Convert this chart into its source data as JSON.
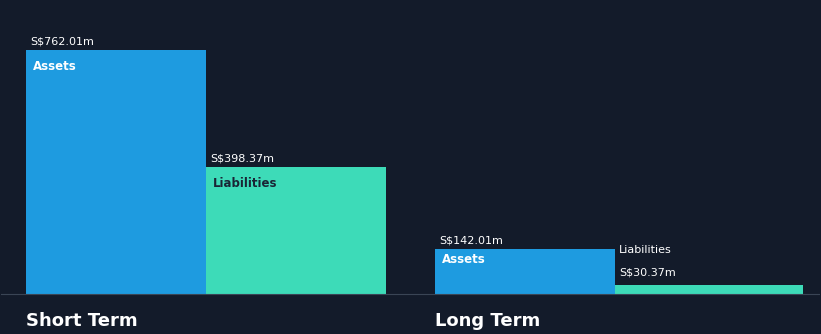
{
  "background_color": "#131b2a",
  "short_term": {
    "assets_value": 762.01,
    "liabilities_value": 398.37,
    "assets_label": "Assets",
    "liabilities_label": "Liabilities",
    "assets_value_label": "S$762.01m",
    "liabilities_value_label": "S$398.37m",
    "section_label": "Short Term"
  },
  "long_term": {
    "assets_value": 142.01,
    "liabilities_value": 30.37,
    "assets_label": "Assets",
    "liabilities_label": "Liabilities",
    "assets_value_label": "S$142.01m",
    "liabilities_value_label": "S$30.37m",
    "section_label": "Long Term"
  },
  "assets_color": "#1e9be0",
  "liabilities_color": "#3ddbb8",
  "text_color": "#ffffff",
  "dark_text_color": "#1a2535",
  "label_fontsize": 8.5,
  "value_fontsize": 8.0,
  "section_fontsize": 13,
  "max_value": 762.01
}
